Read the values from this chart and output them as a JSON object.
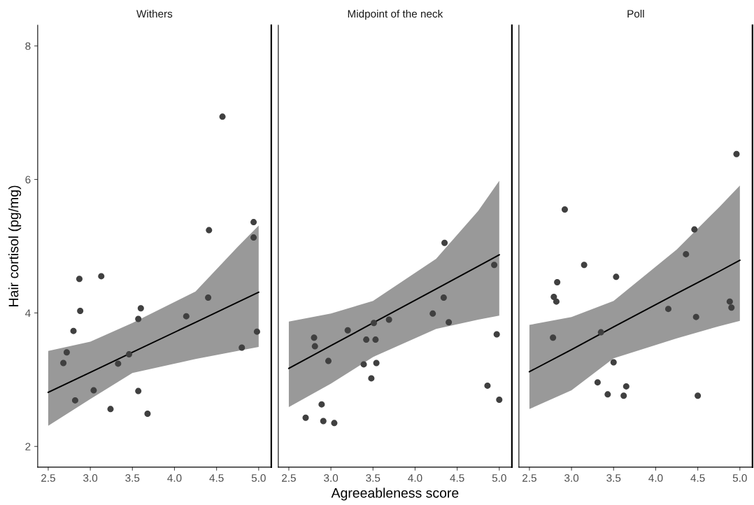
{
  "chart_data": [
    {
      "type": "scatter",
      "title": "Withers",
      "ylabel": "Hair cortisol (pg/mg)",
      "xlim": [
        2.375,
        5.15
      ],
      "ylim": [
        1.69,
        8.31
      ],
      "xticks": [
        {
          "value": 2.5,
          "label": "2.5"
        },
        {
          "value": 3.0,
          "label": "3.0"
        },
        {
          "value": 3.5,
          "label": "3.5"
        },
        {
          "value": 4.0,
          "label": "4.0"
        },
        {
          "value": 4.5,
          "label": "4.5"
        },
        {
          "value": 5.0,
          "label": "5.0"
        }
      ],
      "yticks": [
        2,
        4,
        6,
        8
      ],
      "grid": false,
      "marker": "circle",
      "series": [
        {
          "color": "#404040",
          "x": [
            2.68,
            2.72,
            2.8,
            2.87,
            2.88,
            2.82,
            3.04,
            3.13,
            3.24,
            3.33,
            3.46,
            3.57,
            3.6,
            3.57,
            3.68,
            4.14,
            4.4,
            4.41,
            4.57,
            4.8,
            4.94,
            4.94,
            4.98
          ],
          "values": [
            3.25,
            3.41,
            3.73,
            4.51,
            4.03,
            2.69,
            2.84,
            4.55,
            2.56,
            3.24,
            3.38,
            3.91,
            4.07,
            2.83,
            2.49,
            3.95,
            4.23,
            5.24,
            6.94,
            3.48,
            5.13,
            5.36,
            3.72
          ]
        },
        {
          "type": "line",
          "marker": "none",
          "color": "#000000",
          "x": [
            2.5,
            3.0,
            3.5,
            4.25,
            4.75,
            5.0
          ],
          "values": [
            2.81,
            3.11,
            3.41,
            3.86,
            4.16,
            4.31
          ],
          "lower": [
            2.31,
            2.71,
            3.1,
            3.31,
            3.43,
            3.49
          ],
          "upper": [
            3.43,
            3.57,
            3.85,
            4.32,
            4.99,
            5.31
          ]
        }
      ]
    },
    {
      "type": "scatter",
      "title": "Midpoint of the neck",
      "xlabel": "Agreeableness score",
      "xlim": [
        2.375,
        5.15
      ],
      "ylim": [
        1.69,
        8.31
      ],
      "xticks": [
        {
          "value": 2.5,
          "label": "2.5"
        },
        {
          "value": 3.0,
          "label": "3.0"
        },
        {
          "value": 3.5,
          "label": "3.5"
        },
        {
          "value": 4.0,
          "label": "4.0"
        },
        {
          "value": 4.5,
          "label": "4.5"
        },
        {
          "value": 5.0,
          "label": "5.0"
        }
      ],
      "yticks": [
        2,
        4,
        6,
        8
      ],
      "tick_labels": "x",
      "grid": false,
      "marker": "circle",
      "series": [
        {
          "color": "#404040",
          "x": [
            2.7,
            2.8,
            2.81,
            2.89,
            2.91,
            2.97,
            3.04,
            3.2,
            3.39,
            3.42,
            3.48,
            3.51,
            3.53,
            3.54,
            3.69,
            4.21,
            4.34,
            4.35,
            4.4,
            4.86,
            4.94,
            4.97,
            5.0
          ],
          "values": [
            2.43,
            3.63,
            3.5,
            2.63,
            2.38,
            3.28,
            2.35,
            3.74,
            3.23,
            3.6,
            3.02,
            3.85,
            3.6,
            3.25,
            3.9,
            3.99,
            4.23,
            5.05,
            3.86,
            2.91,
            4.72,
            3.68,
            2.7
          ]
        },
        {
          "type": "line",
          "marker": "none",
          "color": "#000000",
          "x": [
            2.5,
            3.0,
            3.5,
            4.25,
            4.75,
            5.0
          ],
          "values": [
            3.17,
            3.51,
            3.85,
            4.36,
            4.7,
            4.87
          ],
          "lower": [
            2.59,
            2.94,
            3.34,
            3.76,
            3.9,
            3.96
          ],
          "upper": [
            3.87,
            3.99,
            4.18,
            4.81,
            5.53,
            5.98
          ]
        }
      ]
    },
    {
      "type": "scatter",
      "title": "Poll",
      "xlim": [
        2.375,
        5.15
      ],
      "ylim": [
        1.69,
        8.31
      ],
      "xticks": [
        {
          "value": 2.5,
          "label": "2.5"
        },
        {
          "value": 3.0,
          "label": "3.0"
        },
        {
          "value": 3.5,
          "label": "3.5"
        },
        {
          "value": 4.0,
          "label": "4.0"
        },
        {
          "value": 4.5,
          "label": "4.5"
        },
        {
          "value": 5.0,
          "label": "5.0"
        }
      ],
      "yticks": [
        2,
        4,
        6,
        8
      ],
      "tick_labels": "x",
      "grid": false,
      "marker": "circle",
      "series": [
        {
          "color": "#404040",
          "x": [
            2.78,
            2.79,
            2.82,
            2.83,
            2.92,
            3.15,
            3.31,
            3.35,
            3.43,
            3.5,
            3.53,
            3.62,
            3.65,
            4.15,
            4.36,
            4.46,
            4.48,
            4.5,
            4.88,
            4.9,
            4.96
          ],
          "values": [
            3.63,
            4.24,
            4.17,
            4.46,
            5.55,
            4.72,
            2.96,
            3.71,
            2.78,
            3.26,
            4.54,
            2.76,
            2.9,
            4.06,
            4.88,
            5.25,
            3.94,
            2.76,
            4.17,
            4.08,
            6.38
          ]
        },
        {
          "type": "line",
          "marker": "none",
          "color": "#000000",
          "x": [
            2.5,
            3.0,
            3.5,
            4.25,
            4.75,
            5.0
          ],
          "values": [
            3.12,
            3.45,
            3.79,
            4.29,
            4.62,
            4.79
          ],
          "lower": [
            2.56,
            2.84,
            3.32,
            3.62,
            3.8,
            3.88
          ],
          "upper": [
            3.82,
            3.94,
            4.18,
            4.95,
            5.58,
            5.91
          ]
        }
      ]
    }
  ]
}
